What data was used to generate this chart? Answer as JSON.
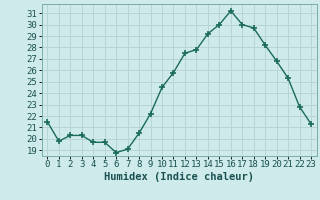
{
  "x": [
    0,
    1,
    2,
    3,
    4,
    5,
    6,
    7,
    8,
    9,
    10,
    11,
    12,
    13,
    14,
    15,
    16,
    17,
    18,
    19,
    20,
    21,
    22,
    23
  ],
  "y": [
    21.5,
    19.8,
    20.3,
    20.3,
    19.7,
    19.7,
    18.8,
    19.1,
    20.5,
    22.2,
    24.5,
    25.8,
    27.5,
    27.8,
    29.2,
    30.0,
    31.2,
    30.0,
    29.7,
    28.2,
    26.8,
    25.3,
    22.8,
    21.3
  ],
  "line_color": "#1a6b5a",
  "marker": "+",
  "marker_size": 4,
  "bg_color": "#ceeaea",
  "grid_color": "#b8d4d4",
  "xlabel": "Humidex (Indice chaleur)",
  "ylim": [
    18.5,
    31.8
  ],
  "xlim": [
    -0.5,
    23.5
  ],
  "yticks": [
    19,
    20,
    21,
    22,
    23,
    24,
    25,
    26,
    27,
    28,
    29,
    30,
    31
  ],
  "xticks": [
    0,
    1,
    2,
    3,
    4,
    5,
    6,
    7,
    8,
    9,
    10,
    11,
    12,
    13,
    14,
    15,
    16,
    17,
    18,
    19,
    20,
    21,
    22,
    23
  ],
  "xlabel_fontsize": 7.5,
  "tick_fontsize": 6.5,
  "line_width": 1.0
}
